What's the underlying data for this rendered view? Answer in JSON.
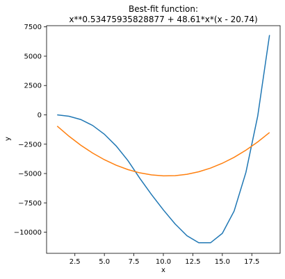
{
  "chart_data": {
    "type": "line",
    "title_line1": "Best-fit function:",
    "title_line2": "x**0.53475935828877 + 48.61*x*(x - 20.74)",
    "xlabel": "x",
    "ylabel": "y",
    "xlim": [
      0.1,
      19.9
    ],
    "ylim": [
      -11800,
      7600
    ],
    "xticks": [
      2.5,
      5.0,
      7.5,
      10.0,
      12.5,
      15.0,
      17.5
    ],
    "xtick_labels": [
      "2.5",
      "5.0",
      "7.5",
      "10.0",
      "12.5",
      "15.0",
      "17.5"
    ],
    "yticks": [
      -10000,
      -7500,
      -5000,
      -2500,
      0,
      2500,
      5000,
      7500
    ],
    "ytick_labels": [
      "−10000",
      "−7500",
      "−5000",
      "−2500",
      "0",
      "2500",
      "5000",
      "7500"
    ],
    "grid": false,
    "series": [
      {
        "color": "#1f77b4",
        "x": [
          1,
          2,
          3,
          4,
          5,
          6,
          7,
          8,
          9,
          10,
          11,
          12,
          13,
          14,
          15,
          16,
          17,
          18,
          19
        ],
        "y": [
          0,
          -120,
          -400,
          -900,
          -1650,
          -2650,
          -3900,
          -5400,
          -6800,
          -8100,
          -9300,
          -10300,
          -10900,
          -10900,
          -10100,
          -8200,
          -4900,
          -100,
          6800
        ]
      },
      {
        "color": "#ff7f0e",
        "x": [
          1,
          2,
          3,
          4,
          5,
          6,
          7,
          8,
          9,
          10,
          11,
          12,
          13,
          14,
          15,
          16,
          17,
          18,
          19
        ],
        "y": [
          -958,
          -1821,
          -2586,
          -3253,
          -3822,
          -4293,
          -4666,
          -4942,
          -5119,
          -5198,
          -5180,
          -5063,
          -4849,
          -4537,
          -4126,
          -3618,
          -3012,
          -2308,
          -1506
        ]
      }
    ]
  }
}
